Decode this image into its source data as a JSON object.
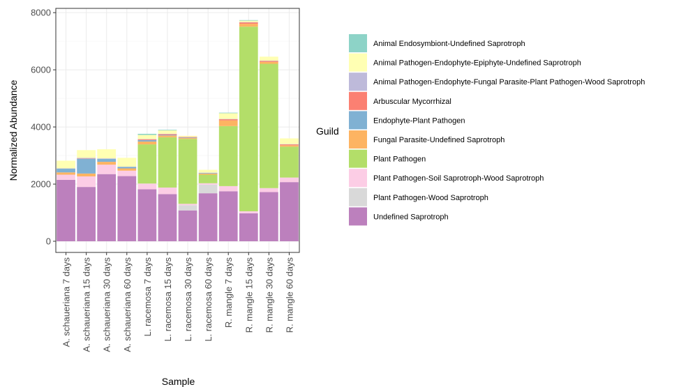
{
  "chart_data": {
    "type": "bar",
    "stacked": true,
    "title": "",
    "xlabel": "Sample",
    "ylabel": "Normalized Abundance",
    "ylim": [
      0,
      8000
    ],
    "yticks": [
      0,
      2000,
      4000,
      6000,
      8000
    ],
    "grid": true,
    "legend_position": "right",
    "legend_title": "Guild",
    "categories": [
      "A. schaueriana 7 days",
      "A. schaueriana 15 days",
      "A. schaueriana 30 days",
      "A. schaueriana 60 days",
      "L. racemosa 7 days",
      "L. racemosa 15 days",
      "L. racemosa 30 days",
      "L. racemosa 60 days",
      "R. mangle 7 days",
      "R. mangle 15 days",
      "R. mangle 30 days",
      "R. mangle 60 days"
    ],
    "series": [
      {
        "name": "Undefined Saprotroph",
        "color": "#bc80bd",
        "values": [
          2150,
          1900,
          2350,
          2280,
          1820,
          1650,
          1080,
          1680,
          1750,
          980,
          1720,
          2070
        ]
      },
      {
        "name": "Plant Pathogen-Wood Saprotroph",
        "color": "#d9d9d9",
        "values": [
          0,
          0,
          0,
          0,
          0,
          0,
          180,
          300,
          0,
          0,
          0,
          0
        ]
      },
      {
        "name": "Plant Pathogen-Soil Saprotroph-Wood Saprotroph",
        "color": "#fccde5",
        "values": [
          180,
          370,
          330,
          190,
          200,
          230,
          50,
          50,
          180,
          70,
          140,
          160
        ]
      },
      {
        "name": "Plant Pathogen",
        "color": "#b3de69",
        "values": [
          0,
          0,
          0,
          0,
          1370,
          1760,
          2270,
          300,
          2100,
          6460,
          4350,
          1080
        ]
      },
      {
        "name": "Fungal Parasite-Undefined Saprotroph",
        "color": "#fdb462",
        "values": [
          80,
          100,
          100,
          80,
          100,
          60,
          30,
          40,
          200,
          100,
          70,
          50
        ]
      },
      {
        "name": "Endophyte-Plant Pathogen",
        "color": "#80b1d3",
        "values": [
          130,
          520,
          100,
          50,
          50,
          20,
          20,
          20,
          0,
          0,
          0,
          0
        ]
      },
      {
        "name": "Arbuscular Mycorrhizal",
        "color": "#fb8072",
        "values": [
          0,
          10,
          0,
          0,
          30,
          30,
          20,
          0,
          40,
          50,
          30,
          30
        ]
      },
      {
        "name": "Animal Pathogen-Endophyte-Fungal Parasite-Plant Pathogen-Wood Saprotroph",
        "color": "#bebada",
        "values": [
          10,
          20,
          20,
          10,
          10,
          10,
          0,
          10,
          10,
          10,
          10,
          10
        ]
      },
      {
        "name": "Animal Pathogen-Endophyte-Epiphyte-Undefined Saprotroph",
        "color": "#ffffb3",
        "values": [
          270,
          270,
          320,
          310,
          140,
          120,
          40,
          100,
          200,
          50,
          140,
          200
        ]
      },
      {
        "name": "Animal Endosymbiont-Undefined Saprotroph",
        "color": "#8dd3c7",
        "values": [
          0,
          0,
          0,
          0,
          40,
          20,
          0,
          0,
          20,
          20,
          0,
          0
        ]
      }
    ],
    "legend_order": [
      "Animal Endosymbiont-Undefined Saprotroph",
      "Animal Pathogen-Endophyte-Epiphyte-Undefined Saprotroph",
      "Animal Pathogen-Endophyte-Fungal Parasite-Plant Pathogen-Wood Saprotroph",
      "Arbuscular Mycorrhizal",
      "Endophyte-Plant Pathogen",
      "Fungal Parasite-Undefined Saprotroph",
      "Plant Pathogen",
      "Plant Pathogen-Soil Saprotroph-Wood Saprotroph",
      "Plant Pathogen-Wood Saprotroph",
      "Undefined Saprotroph"
    ]
  }
}
